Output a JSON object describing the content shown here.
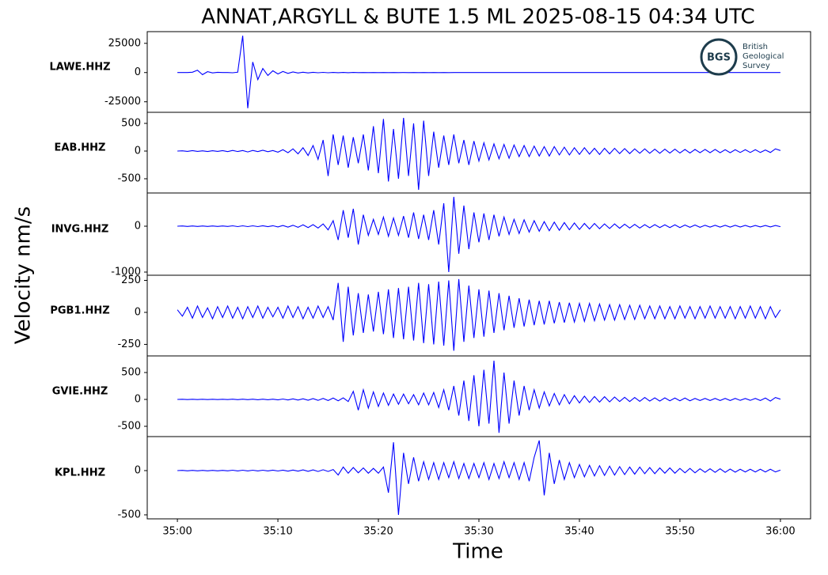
{
  "chart_data": {
    "type": "seismogram",
    "title": "ANNAT,ARGYLL & BUTE 1.5 ML   2025-08-15 04:34 UTC",
    "xlabel": "Time",
    "ylabel": "Velocity nm/s",
    "logo": {
      "mark": "BGS",
      "lines": [
        "British",
        "Geological",
        "Survey"
      ]
    },
    "xlim": [
      -3,
      63
    ],
    "xticks": [
      {
        "value": 0,
        "label": "35:00"
      },
      {
        "value": 10,
        "label": "35:10"
      },
      {
        "value": 20,
        "label": "35:20"
      },
      {
        "value": 30,
        "label": "35:30"
      },
      {
        "value": 40,
        "label": "35:40"
      },
      {
        "value": 50,
        "label": "35:50"
      },
      {
        "value": 60,
        "label": "36:00"
      }
    ],
    "x": [
      0,
      0.5,
      1,
      1.5,
      2,
      2.5,
      3,
      3.5,
      4,
      4.5,
      5,
      5.5,
      6,
      6.5,
      7,
      7.5,
      8,
      8.5,
      9,
      9.5,
      10,
      10.5,
      11,
      11.5,
      12,
      12.5,
      13,
      13.5,
      14,
      14.5,
      15,
      15.5,
      16,
      16.5,
      17,
      17.5,
      18,
      18.5,
      19,
      19.5,
      20,
      20.5,
      21,
      21.5,
      22,
      22.5,
      23,
      23.5,
      24,
      24.5,
      25,
      25.5,
      26,
      26.5,
      27,
      27.5,
      28,
      28.5,
      29,
      29.5,
      30,
      30.5,
      31,
      31.5,
      32,
      32.5,
      33,
      33.5,
      34,
      34.5,
      35,
      35.5,
      36,
      36.5,
      37,
      37.5,
      38,
      38.5,
      39,
      39.5,
      40,
      40.5,
      41,
      41.5,
      42,
      42.5,
      43,
      43.5,
      44,
      44.5,
      45,
      45.5,
      46,
      46.5,
      47,
      47.5,
      48,
      48.5,
      49,
      49.5,
      50,
      50.5,
      51,
      51.5,
      52,
      52.5,
      53,
      53.5,
      54,
      54.5,
      55,
      55.5,
      56,
      56.5,
      57,
      57.5,
      58,
      58.5,
      59,
      59.5,
      60
    ],
    "panels": [
      {
        "name": "LAWE.HHZ",
        "color": "#0000ff",
        "ylim": [
          -34000,
          35000
        ],
        "yticks": [
          -25000,
          0,
          25000
        ],
        "values": [
          0,
          0,
          0,
          300,
          2000,
          -1800,
          800,
          -300,
          200,
          0,
          0,
          -200,
          300,
          31500,
          -30500,
          9000,
          -6000,
          3500,
          -2500,
          1500,
          -1200,
          900,
          -700,
          500,
          -400,
          300,
          -300,
          200,
          -200,
          150,
          -150,
          100,
          -100,
          100,
          -80,
          80,
          -60,
          60,
          -50,
          50,
          -40,
          40,
          -30,
          30,
          -30,
          20,
          -20,
          20,
          -20,
          10,
          -10,
          10,
          -10,
          10,
          -10,
          10,
          0,
          0,
          0,
          0,
          0,
          0,
          0,
          0,
          0,
          0,
          0,
          0,
          0,
          0,
          0,
          0,
          0,
          0,
          0,
          0,
          0,
          0,
          0,
          0,
          0,
          0,
          0,
          0,
          0,
          0,
          0,
          0,
          0,
          0,
          0,
          0,
          0,
          0,
          0,
          0,
          0,
          0,
          0,
          0,
          0,
          0,
          0,
          0,
          0,
          0,
          0,
          0,
          0,
          0,
          0,
          0,
          0,
          0,
          0,
          0,
          0,
          0,
          0,
          0,
          0
        ]
      },
      {
        "name": "EAB.HHZ",
        "color": "#0000ff",
        "ylim": [
          -757,
          700
        ],
        "yticks": [
          -500,
          0,
          500
        ],
        "values": [
          0,
          5,
          -5,
          8,
          -6,
          5,
          -8,
          6,
          -5,
          8,
          -10,
          12,
          -8,
          10,
          -15,
          12,
          -10,
          15,
          -12,
          10,
          -20,
          25,
          -30,
          40,
          -50,
          60,
          -80,
          100,
          -150,
          200,
          -450,
          300,
          -250,
          280,
          -300,
          250,
          -220,
          300,
          -350,
          450,
          -400,
          580,
          -550,
          400,
          -500,
          600,
          -450,
          500,
          -700,
          550,
          -450,
          350,
          -300,
          280,
          -250,
          300,
          -220,
          200,
          -250,
          180,
          -180,
          150,
          -160,
          130,
          -140,
          120,
          -130,
          110,
          -100,
          100,
          -100,
          90,
          -90,
          80,
          -90,
          80,
          -70,
          70,
          -70,
          60,
          -60,
          60,
          -55,
          50,
          -60,
          50,
          -50,
          50,
          -45,
          45,
          -45,
          40,
          -40,
          40,
          -40,
          35,
          -40,
          35,
          -35,
          35,
          -35,
          30,
          -35,
          30,
          -30,
          30,
          -30,
          30,
          -30,
          25,
          -30,
          25,
          -25,
          25,
          -25,
          25,
          -25,
          20,
          -25,
          40,
          10
        ]
      },
      {
        "name": "INVG.HHZ",
        "color": "#0000ff",
        "ylim": [
          -1069,
          724
        ],
        "yticks": [
          -1000,
          0
        ],
        "values": [
          0,
          5,
          -5,
          5,
          -5,
          5,
          -5,
          5,
          -5,
          5,
          -5,
          8,
          -8,
          8,
          -8,
          8,
          -8,
          10,
          -10,
          10,
          -15,
          15,
          -20,
          20,
          -25,
          30,
          -30,
          35,
          -40,
          50,
          -80,
          120,
          -300,
          350,
          -250,
          380,
          -400,
          250,
          -200,
          150,
          -180,
          200,
          -220,
          180,
          -200,
          220,
          -250,
          300,
          -280,
          250,
          -300,
          350,
          -400,
          500,
          -1000,
          640,
          -600,
          450,
          -500,
          300,
          -350,
          280,
          -300,
          250,
          -220,
          200,
          -180,
          150,
          -160,
          140,
          -130,
          120,
          -110,
          100,
          -100,
          90,
          -90,
          80,
          -80,
          70,
          -70,
          60,
          -60,
          60,
          -55,
          50,
          -50,
          50,
          -45,
          45,
          -40,
          40,
          -40,
          35,
          -35,
          35,
          -30,
          30,
          -30,
          30,
          -30,
          25,
          -25,
          25,
          -25,
          20,
          -20,
          20,
          -20,
          20,
          -20,
          20,
          -18,
          18,
          -18,
          15,
          -15,
          15,
          -15,
          15,
          -10
        ]
      },
      {
        "name": "PGB1.HHZ",
        "color": "#0000ff",
        "ylim": [
          -340,
          290
        ],
        "yticks": [
          -250,
          0,
          250
        ],
        "values": [
          20,
          -30,
          40,
          -45,
          50,
          -40,
          35,
          -50,
          45,
          -40,
          50,
          -45,
          40,
          -50,
          45,
          -40,
          50,
          -45,
          40,
          -35,
          40,
          -45,
          50,
          -40,
          45,
          -50,
          40,
          -45,
          50,
          -40,
          45,
          -60,
          230,
          -230,
          200,
          -180,
          150,
          -160,
          140,
          -150,
          160,
          -170,
          180,
          -200,
          190,
          -210,
          200,
          -220,
          230,
          -240,
          220,
          -250,
          240,
          -260,
          250,
          -300,
          260,
          -230,
          210,
          -200,
          180,
          -190,
          170,
          -160,
          150,
          -140,
          130,
          -120,
          110,
          -110,
          100,
          -100,
          90,
          -95,
          90,
          -85,
          80,
          -80,
          75,
          -75,
          70,
          -70,
          70,
          -65,
          65,
          -60,
          60,
          -60,
          60,
          -55,
          55,
          -55,
          55,
          -50,
          50,
          -50,
          50,
          -50,
          45,
          -50,
          50,
          -45,
          45,
          -50,
          45,
          -45,
          50,
          -45,
          45,
          -45,
          45,
          -50,
          45,
          -45,
          50,
          -45,
          45,
          -50,
          45,
          -40,
          20
        ]
      },
      {
        "name": "GVIE.HHZ",
        "color": "#0000ff",
        "ylim": [
          -691,
          809
        ],
        "yticks": [
          -500,
          0,
          500
        ],
        "values": [
          0,
          3,
          -3,
          3,
          -3,
          3,
          -3,
          3,
          -3,
          3,
          -3,
          4,
          -4,
          4,
          -4,
          5,
          -5,
          5,
          -5,
          5,
          -8,
          8,
          -10,
          10,
          -12,
          12,
          -15,
          15,
          -18,
          20,
          -20,
          25,
          -25,
          30,
          -40,
          150,
          -200,
          180,
          -160,
          140,
          -130,
          120,
          -110,
          100,
          -90,
          100,
          -80,
          90,
          -100,
          120,
          -100,
          130,
          -150,
          180,
          -200,
          250,
          -300,
          350,
          -400,
          450,
          -500,
          550,
          -450,
          720,
          -620,
          500,
          -450,
          350,
          -300,
          250,
          -200,
          180,
          -160,
          140,
          -120,
          110,
          -100,
          90,
          -80,
          70,
          -65,
          60,
          -55,
          55,
          -50,
          50,
          -45,
          45,
          -40,
          40,
          -40,
          35,
          -35,
          35,
          -30,
          30,
          -30,
          30,
          -25,
          25,
          -25,
          25,
          -25,
          20,
          -20,
          20,
          -20,
          20,
          -20,
          20,
          -20,
          20,
          -18,
          18,
          -18,
          20,
          -20,
          25,
          -30,
          35,
          5
        ]
      },
      {
        "name": "KPL.HHZ",
        "color": "#0000ff",
        "ylim": [
          -545,
          384
        ],
        "yticks": [
          -500,
          0
        ],
        "values": [
          0,
          3,
          -3,
          3,
          -3,
          3,
          -3,
          3,
          -3,
          3,
          -3,
          4,
          -4,
          4,
          -4,
          4,
          -4,
          4,
          -4,
          5,
          -5,
          5,
          -6,
          6,
          -6,
          8,
          -8,
          8,
          -10,
          10,
          -10,
          12,
          -50,
          40,
          -30,
          35,
          -25,
          30,
          -30,
          25,
          -30,
          40,
          -250,
          320,
          -500,
          200,
          -150,
          150,
          -120,
          100,
          -100,
          90,
          -100,
          90,
          -80,
          100,
          -90,
          80,
          -90,
          80,
          -80,
          90,
          -100,
          80,
          -90,
          100,
          -80,
          90,
          -100,
          90,
          -120,
          150,
          340,
          -280,
          200,
          -150,
          120,
          -100,
          90,
          -80,
          70,
          -70,
          60,
          -60,
          55,
          -55,
          50,
          -50,
          45,
          -45,
          40,
          -40,
          40,
          -35,
          35,
          -35,
          30,
          -30,
          30,
          -30,
          25,
          -25,
          25,
          -25,
          20,
          -20,
          20,
          -20,
          20,
          -20,
          18,
          -18,
          15,
          -15,
          15,
          -15,
          15,
          -15,
          15,
          -15,
          5
        ]
      }
    ]
  }
}
